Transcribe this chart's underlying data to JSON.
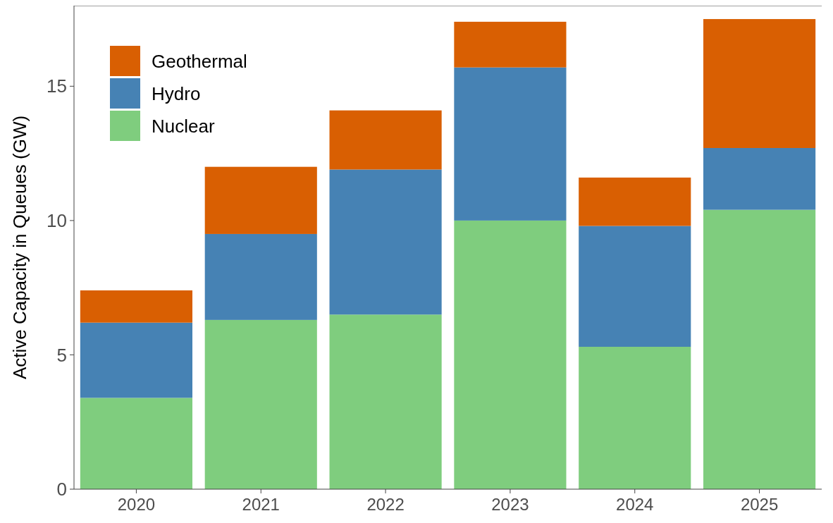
{
  "chart_data": {
    "type": "bar",
    "stacked": true,
    "ylabel": "Active Capacity in Queues (GW)",
    "categories": [
      "2020",
      "2021",
      "2022",
      "2023",
      "2024",
      "2025"
    ],
    "series": [
      {
        "name": "Nuclear",
        "color": "#7fcd7e",
        "values": [
          3.4,
          6.3,
          6.5,
          10.0,
          5.3,
          10.4
        ]
      },
      {
        "name": "Hydro",
        "color": "#4682b4",
        "values": [
          2.8,
          3.2,
          5.4,
          5.7,
          4.5,
          2.3
        ]
      },
      {
        "name": "Geothermal",
        "color": "#d95f02",
        "values": [
          1.2,
          2.5,
          2.2,
          1.7,
          1.8,
          4.8
        ]
      }
    ],
    "ylim": [
      0,
      18
    ],
    "yticks": [
      0,
      5,
      10,
      15
    ],
    "grid": false,
    "legend": "top left"
  }
}
